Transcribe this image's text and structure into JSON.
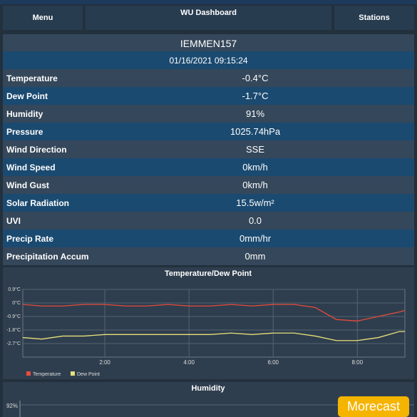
{
  "header": {
    "menu": "Menu",
    "title": "WU Dashboard",
    "stations": "Stations"
  },
  "station": {
    "id": "IEMMEN157",
    "timestamp": "01/16/2021 09:15:24"
  },
  "table": {
    "rows": [
      [
        "Temperature",
        "-0.4°C"
      ],
      [
        "Dew Point",
        "-1.7°C"
      ],
      [
        "Humidity",
        "91%"
      ],
      [
        "Pressure",
        "1025.74hPa"
      ],
      [
        "Wind Direction",
        "SSE"
      ],
      [
        "Wind Speed",
        "0km/h"
      ],
      [
        "Wind Gust",
        "0km/h"
      ],
      [
        "Solar Radiation",
        "15.5w/m²"
      ],
      [
        "UVI",
        "0.0"
      ],
      [
        "Precip Rate",
        "0mm/hr"
      ],
      [
        "Precipitation Accum",
        "0mm"
      ]
    ]
  },
  "chart_data": {
    "type": "line",
    "title": "Temperature/Dew Point",
    "x": [
      0.05,
      0.5,
      1,
      1.5,
      2,
      2.5,
      3,
      3.5,
      4,
      4.5,
      5,
      5.5,
      6,
      6.5,
      7,
      7.5,
      8,
      8.5,
      9,
      9.13
    ],
    "series": [
      {
        "name": "Temperature",
        "color": "#e74c3c",
        "values": [
          -0.1,
          -0.2,
          -0.2,
          -0.1,
          -0.1,
          -0.2,
          -0.2,
          -0.1,
          -0.2,
          -0.2,
          -0.1,
          -0.2,
          -0.1,
          -0.1,
          -0.3,
          -1.1,
          -1.2,
          -0.9,
          -0.6,
          -0.5
        ]
      },
      {
        "name": "Dew Point",
        "color": "#e8e07a",
        "values": [
          -2.3,
          -2.4,
          -2.2,
          -2.2,
          -2.1,
          -2.1,
          -2.1,
          -2.1,
          -2.1,
          -2.1,
          -2.0,
          -2.1,
          -2.0,
          -2.0,
          -2.2,
          -2.5,
          -2.5,
          -2.3,
          -1.9,
          -1.9
        ]
      }
    ],
    "xlim": [
      0.05,
      9.13
    ],
    "xticks": [
      {
        "value": 2,
        "label": "2:00"
      },
      {
        "value": 4,
        "label": "4:00"
      },
      {
        "value": 6,
        "label": "6:00"
      },
      {
        "value": 8,
        "label": "8:00"
      }
    ],
    "ylim": [
      -3.6,
      0.9
    ],
    "yticks": [
      {
        "value": 0.9,
        "label": "0.9°C"
      },
      {
        "value": 0,
        "label": "0°C"
      },
      {
        "value": -0.9,
        "label": "-0.9°C"
      },
      {
        "value": -1.8,
        "label": "-1.8°C"
      },
      {
        "value": -2.7,
        "label": "-2.7°C"
      }
    ],
    "grid": true
  },
  "humidity": {
    "title": "Humidity",
    "ytick": "92%"
  },
  "badge": "Morecast"
}
